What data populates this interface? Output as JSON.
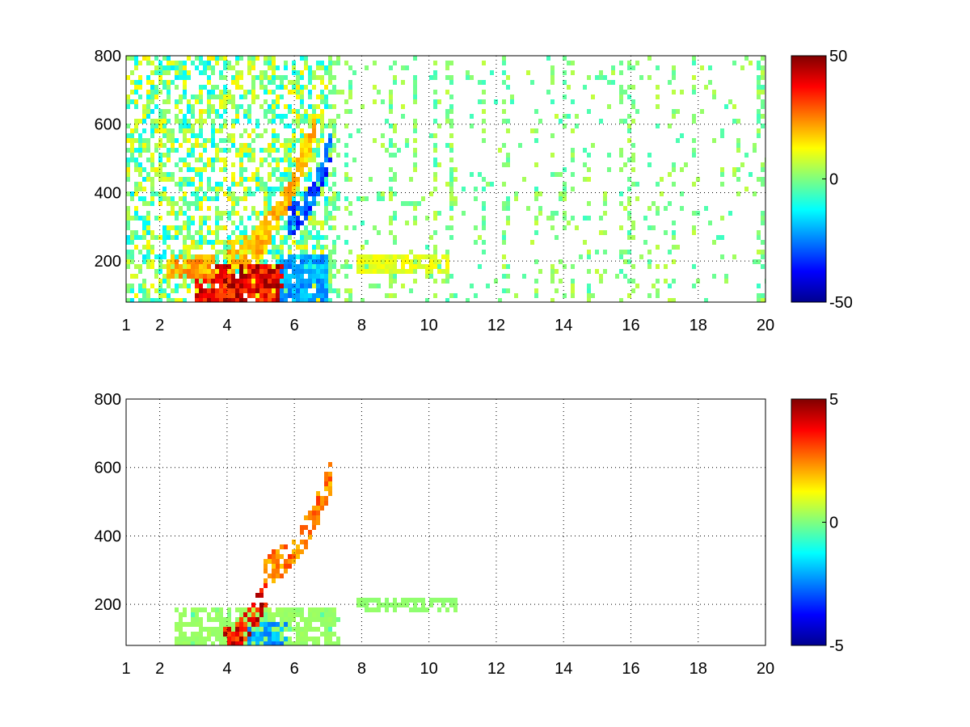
{
  "chart_data": [
    {
      "type": "heatmap",
      "title": "",
      "xlabel": "",
      "ylabel": "",
      "xlim": [
        1,
        20
      ],
      "ylim": [
        80,
        800
      ],
      "xticks": [
        1,
        2,
        4,
        6,
        8,
        10,
        12,
        14,
        16,
        18,
        20
      ],
      "yticks": [
        200,
        400,
        600,
        800
      ],
      "grid": true,
      "colormap": "jet",
      "clim": [
        -50,
        50
      ],
      "colorbar_ticks": [
        50,
        0,
        -50
      ],
      "blank_color": "#ffffff",
      "features": [
        {
          "kind": "blob",
          "x": [
            3.0,
            5.6
          ],
          "y": [
            80,
            200
          ],
          "value": 45
        },
        {
          "kind": "blob",
          "x": [
            2.2,
            3.6
          ],
          "y": [
            150,
            230
          ],
          "value": 25
        },
        {
          "kind": "blob",
          "x": [
            5.5,
            7.0
          ],
          "y": [
            80,
            220
          ],
          "value": -25
        },
        {
          "kind": "blob",
          "x": [
            7.8,
            10.5
          ],
          "y": [
            170,
            230
          ],
          "value": 12
        },
        {
          "kind": "arc",
          "x": [
            4.0,
            6.6
          ],
          "y": [
            220,
            620
          ],
          "value": 22
        },
        {
          "kind": "arc",
          "x": [
            5.8,
            7.1
          ],
          "y": [
            330,
            580
          ],
          "value": -35
        }
      ]
    },
    {
      "type": "heatmap",
      "title": "",
      "xlabel": "",
      "ylabel": "",
      "xlim": [
        1,
        20
      ],
      "ylim": [
        80,
        800
      ],
      "xticks": [
        1,
        2,
        4,
        6,
        8,
        10,
        12,
        14,
        16,
        18,
        20
      ],
      "yticks": [
        200,
        400,
        600,
        800
      ],
      "grid": true,
      "colormap": "jet",
      "clim": [
        -5,
        5
      ],
      "colorbar_ticks": [
        5,
        0,
        -5
      ],
      "blank_color": "#ffffff",
      "features": [
        {
          "kind": "blob",
          "x": [
            2.4,
            7.2
          ],
          "y": [
            80,
            200
          ],
          "value": 0.3
        },
        {
          "kind": "blob",
          "x": [
            4.5,
            5.8
          ],
          "y": [
            80,
            150
          ],
          "value": -2.5
        },
        {
          "kind": "arc",
          "x": [
            3.8,
            5.2
          ],
          "y": [
            100,
            260
          ],
          "value": 4.5
        },
        {
          "kind": "arc",
          "x": [
            5.0,
            7.1
          ],
          "y": [
            310,
            600
          ],
          "value": 3.0
        },
        {
          "kind": "blob",
          "x": [
            7.8,
            10.8
          ],
          "y": [
            180,
            220
          ],
          "value": 0.2
        }
      ]
    }
  ]
}
